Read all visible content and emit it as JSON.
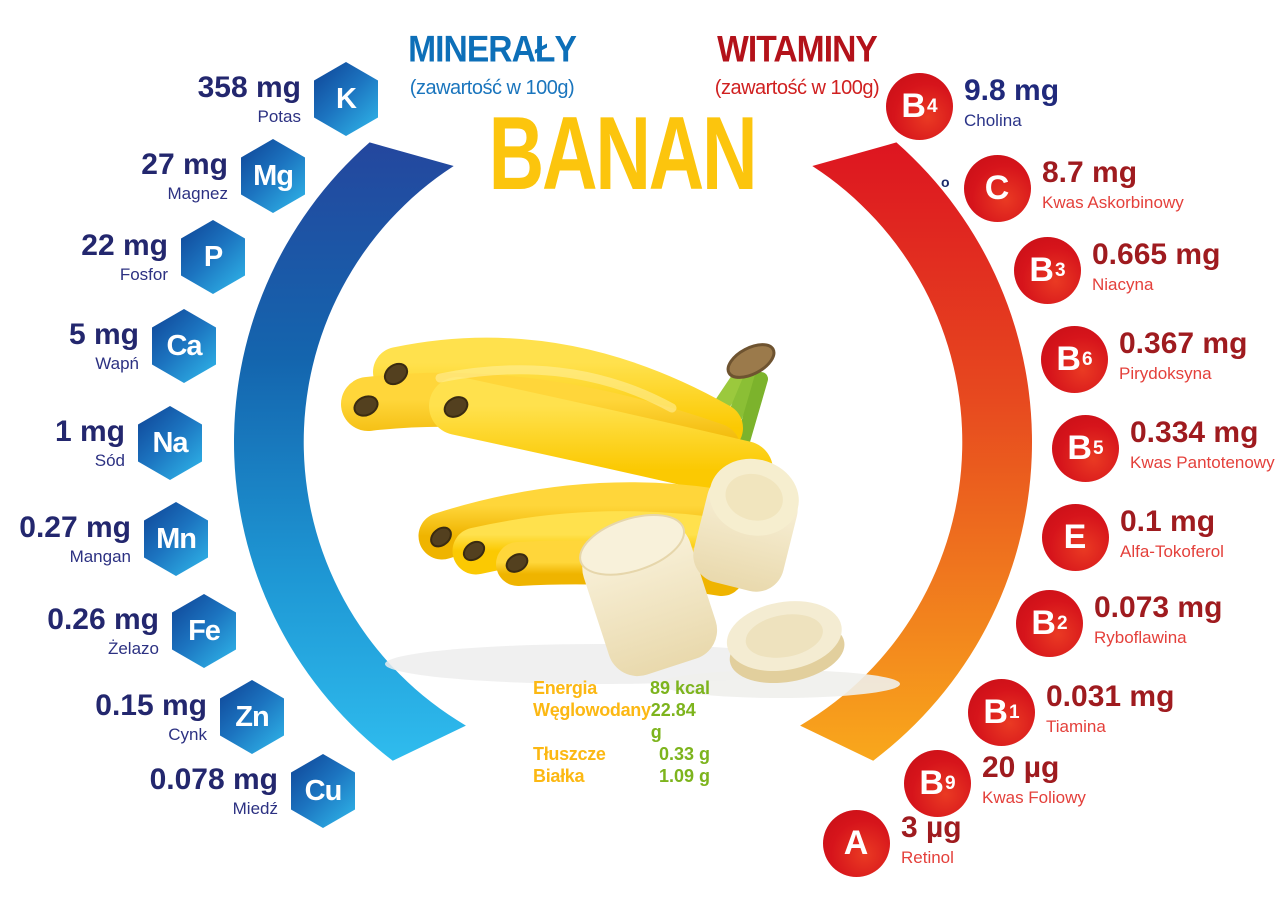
{
  "header": {
    "minerals_title": "MINERAŁY",
    "minerals_subtitle": "(zawartość w 100g)",
    "vitamins_title": "WITAMINY",
    "vitamins_subtitle": "(zawartość w 100g)",
    "product_title": "BANAN"
  },
  "minerals": [
    {
      "symbol": "K",
      "value": "358 mg",
      "name": "Potas"
    },
    {
      "symbol": "Mg",
      "value": "27 mg",
      "name": "Magnez"
    },
    {
      "symbol": "P",
      "value": "22 mg",
      "name": "Fosfor"
    },
    {
      "symbol": "Ca",
      "value": "5 mg",
      "name": "Wapń"
    },
    {
      "symbol": "Na",
      "value": "1 mg",
      "name": "Sód"
    },
    {
      "symbol": "Mn",
      "value": "0.27 mg",
      "name": "Mangan"
    },
    {
      "symbol": "Fe",
      "value": "0.26 mg",
      "name": "Żelazo"
    },
    {
      "symbol": "Zn",
      "value": "0.15 mg",
      "name": "Cynk"
    },
    {
      "symbol": "Cu",
      "value": "0.078 mg",
      "name": "Miedź"
    }
  ],
  "vitamins": [
    {
      "symbol": "B",
      "sub": "4",
      "value": "9.8 mg",
      "name": "Cholina",
      "accent": "navy"
    },
    {
      "symbol": "C",
      "sub": "",
      "value": "8.7 mg",
      "name": "Kwas Askorbinowy"
    },
    {
      "symbol": "B",
      "sub": "3",
      "value": "0.665 mg",
      "name": "Niacyna"
    },
    {
      "symbol": "B",
      "sub": "6",
      "value": "0.367 mg",
      "name": "Pirydoksyna"
    },
    {
      "symbol": "B",
      "sub": "5",
      "value": "0.334 mg",
      "name": "Kwas Pantotenowy"
    },
    {
      "symbol": "E",
      "sub": "",
      "value": "0.1 mg",
      "name": "Alfa-Tokoferol"
    },
    {
      "symbol": "B",
      "sub": "2",
      "value": "0.073 mg",
      "name": "Ryboflawina"
    },
    {
      "symbol": "B",
      "sub": "1",
      "value": "0.031 mg",
      "name": "Tiamina"
    },
    {
      "symbol": "B",
      "sub": "9",
      "value": "20 µg",
      "name": "Kwas Foliowy"
    },
    {
      "symbol": "A",
      "sub": "",
      "value": "3 µg",
      "name": "Retinol"
    }
  ],
  "nutrition_facts": {
    "rows": [
      {
        "label": "Energia",
        "value": "89 kcal"
      },
      {
        "label": "Węglowodany",
        "value": "22.84 g"
      },
      {
        "label": "Tłuszcze",
        "value": "0.33 g"
      },
      {
        "label": "Białka",
        "value": "1.09 g"
      }
    ]
  },
  "artifacts": {
    "stray_mark": "o"
  },
  "colors": {
    "minerals_title": "#0d6fb8",
    "vitamins_title": "#b3121a",
    "mineral_text_navy": "#23276e",
    "vitamin_text_dark_red": "#9f1b1f",
    "vitamin_label_red": "#e4403b",
    "arc_blue_top": "#24479e",
    "arc_blue_bottom": "#2fbcee",
    "arc_red_top": "#dd1520",
    "arc_red_bottom": "#f9a81c",
    "hexagon_gradient": [
      "#0e4294",
      "#31bbec"
    ],
    "circle_red": "#d6141b",
    "product_title_yellow": "#fcc50d",
    "facts_label_yellow": "#fcb813",
    "facts_value_green": "#7db41d"
  }
}
